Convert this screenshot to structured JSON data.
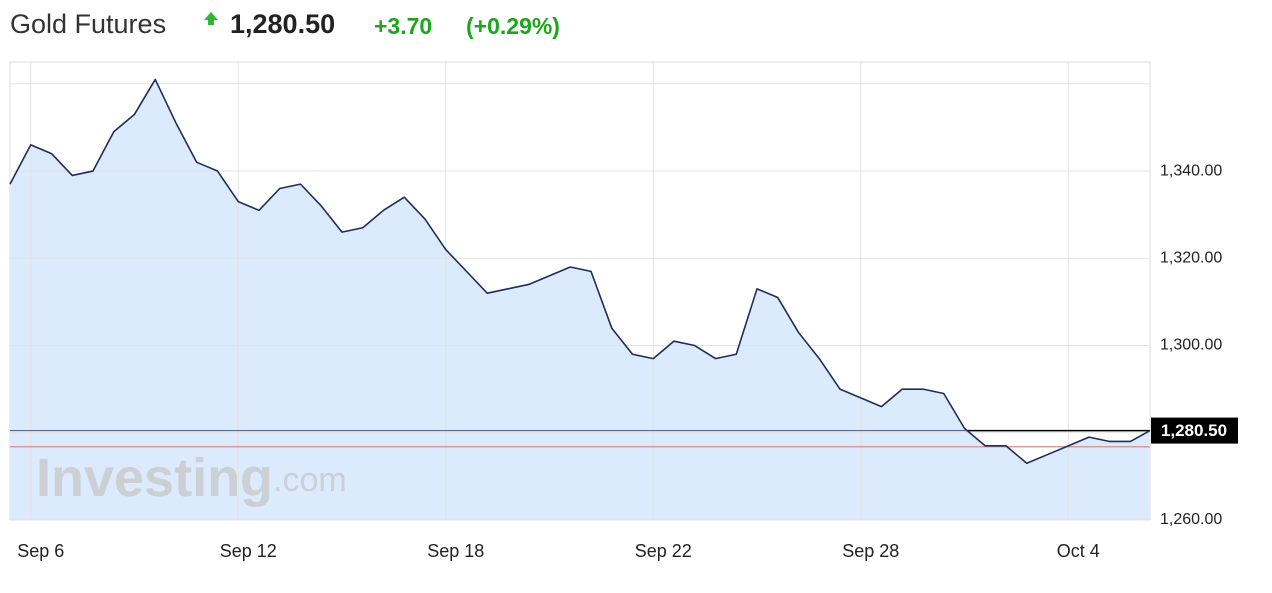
{
  "header": {
    "name": "Gold Futures",
    "price": "1,280.50",
    "change": "+3.70",
    "change_pct": "(+0.29%)"
  },
  "chart_data": {
    "type": "line",
    "watermark": [
      "Investing",
      ".com"
    ],
    "categories": [
      null,
      "Sep 6",
      null,
      null,
      null,
      null,
      null,
      null,
      null,
      null,
      null,
      "Sep 12",
      null,
      null,
      null,
      null,
      null,
      null,
      null,
      null,
      null,
      "Sep 18",
      null,
      null,
      null,
      null,
      null,
      null,
      null,
      null,
      null,
      "Sep 22",
      null,
      null,
      null,
      null,
      null,
      null,
      null,
      null,
      null,
      "Sep 28",
      null,
      null,
      null,
      null,
      null,
      null,
      null,
      null,
      null,
      "Oct 4",
      null,
      null,
      null,
      null
    ],
    "series": [
      {
        "name": "Gold Futures",
        "color": "#1f2d5c",
        "fill": "#dbeafd",
        "values": [
          1337,
          1346,
          1344,
          1339,
          1340,
          1349,
          1353,
          1361,
          1351,
          1342,
          1340,
          1333,
          1331,
          1336,
          1337,
          1332,
          1326,
          1327,
          1331,
          1334,
          1329,
          1322,
          1317,
          1312,
          1313,
          1314,
          1316,
          1318,
          1317,
          1304,
          1298,
          1297,
          1301,
          1300,
          1297,
          1298,
          1313,
          1311,
          1303,
          1297,
          1290,
          1288,
          1286,
          1290,
          1290,
          1289,
          1281,
          1277,
          1277,
          1273,
          1275,
          1277,
          1279,
          1278,
          1278,
          1280.5
        ]
      }
    ],
    "ylim": [
      1260,
      1365
    ],
    "yticks": [
      {
        "value": 1260,
        "label": "1,260.00"
      },
      {
        "value": 1300,
        "label": "1,300.00"
      },
      {
        "value": 1320,
        "label": "1,320.00"
      },
      {
        "value": 1340,
        "label": "1,340.00"
      }
    ],
    "ygrid": [
      1260,
      1280,
      1300,
      1320,
      1340,
      1360
    ],
    "grid": true,
    "price_line": {
      "value": 1280.5,
      "label": "1,280.50"
    },
    "previous_close": 1276.8
  }
}
